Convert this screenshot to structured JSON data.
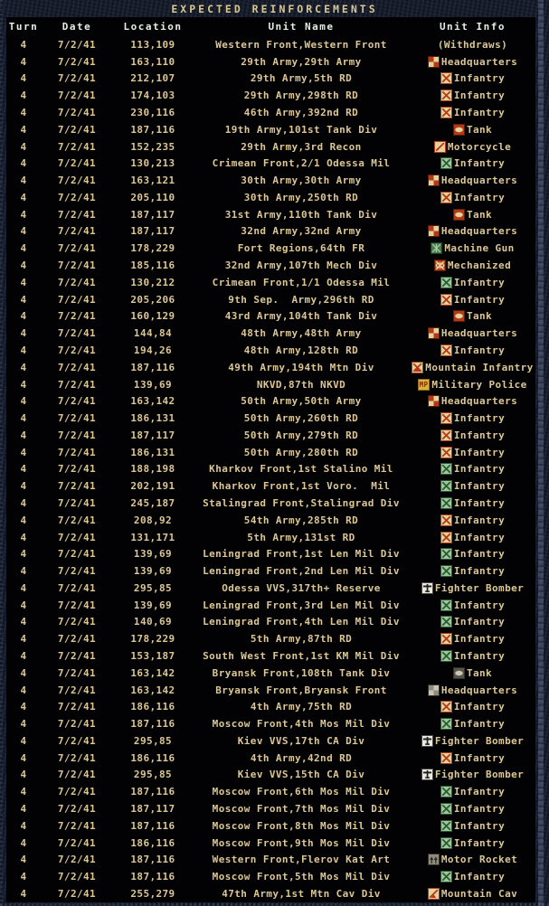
{
  "title": "EXPECTED REINFORCEMENTS",
  "colors": {
    "frame_bg": "#151b29",
    "panel_bg": "#020204",
    "title_text": "#d9c792",
    "header_text": "#e4efe4",
    "body_text": "#dcc794",
    "icon_red": "#b23a17",
    "icon_tan": "#e3d19e",
    "icon_green": "#2c5a30",
    "icon_gold": "#d8b23a",
    "icon_gray": "#8f8b7d"
  },
  "table": {
    "headers": [
      "Turn",
      "Date",
      "Location",
      "Unit Name",
      "Unit Info"
    ],
    "rows": [
      {
        "turn": "4",
        "date": "7/2/41",
        "loc": "113,109",
        "name": "Western Front,Western Front",
        "info": "(Withdraws)",
        "icon": "none"
      },
      {
        "turn": "4",
        "date": "7/2/41",
        "loc": "163,110",
        "name": "29th Army,29th Army",
        "info": "Headquarters",
        "icon": "headquarters-red"
      },
      {
        "turn": "4",
        "date": "7/2/41",
        "loc": "212,107",
        "name": "29th Army,5th RD",
        "info": "Infantry",
        "icon": "infantry-red"
      },
      {
        "turn": "4",
        "date": "7/2/41",
        "loc": "174,103",
        "name": "29th Army,298th RD",
        "info": "Infantry",
        "icon": "infantry-red"
      },
      {
        "turn": "4",
        "date": "7/2/41",
        "loc": "230,116",
        "name": "46th Army,392nd RD",
        "info": "Infantry",
        "icon": "infantry-red"
      },
      {
        "turn": "4",
        "date": "7/2/41",
        "loc": "187,116",
        "name": "19th Army,101st Tank Div",
        "info": "Tank",
        "icon": "tank-orange"
      },
      {
        "turn": "4",
        "date": "7/2/41",
        "loc": "152,235",
        "name": "29th Army,3rd Recon",
        "info": "Motorcycle",
        "icon": "motorcycle-red"
      },
      {
        "turn": "4",
        "date": "7/2/41",
        "loc": "130,213",
        "name": "Crimean Front,2/1 Odessa Mil",
        "info": "Infantry",
        "icon": "infantry-green"
      },
      {
        "turn": "4",
        "date": "7/2/41",
        "loc": "163,121",
        "name": "30th Army,30th Army",
        "info": "Headquarters",
        "icon": "headquarters-red"
      },
      {
        "turn": "4",
        "date": "7/2/41",
        "loc": "205,110",
        "name": "30th Army,250th RD",
        "info": "Infantry",
        "icon": "infantry-red"
      },
      {
        "turn": "4",
        "date": "7/2/41",
        "loc": "187,117",
        "name": "31st Army,110th Tank Div",
        "info": "Tank",
        "icon": "tank-orange"
      },
      {
        "turn": "4",
        "date": "7/2/41",
        "loc": "187,117",
        "name": "32nd Army,32nd Army",
        "info": "Headquarters",
        "icon": "headquarters-red"
      },
      {
        "turn": "4",
        "date": "7/2/41",
        "loc": "178,229",
        "name": "Fort Regions,64th FR",
        "info": "Machine Gun",
        "icon": "machine-gun-green"
      },
      {
        "turn": "4",
        "date": "7/2/41",
        "loc": "185,116",
        "name": "32nd Army,107th Mech Div",
        "info": "Mechanized",
        "icon": "mechanized-red"
      },
      {
        "turn": "4",
        "date": "7/2/41",
        "loc": "130,212",
        "name": "Crimean Front,1/1 Odessa Mil",
        "info": "Infantry",
        "icon": "infantry-green"
      },
      {
        "turn": "4",
        "date": "7/2/41",
        "loc": "205,206",
        "name": "9th Sep.  Army,296th RD",
        "info": "Infantry",
        "icon": "infantry-red"
      },
      {
        "turn": "4",
        "date": "7/2/41",
        "loc": "160,129",
        "name": "43rd Army,104th Tank Div",
        "info": "Tank",
        "icon": "tank-orange"
      },
      {
        "turn": "4",
        "date": "7/2/41",
        "loc": "144,84",
        "name": "48th Army,48th Army",
        "info": "Headquarters",
        "icon": "headquarters-red"
      },
      {
        "turn": "4",
        "date": "7/2/41",
        "loc": "194,26",
        "name": "48th Army,128th RD",
        "info": "Infantry",
        "icon": "infantry-red"
      },
      {
        "turn": "4",
        "date": "7/2/41",
        "loc": "187,116",
        "name": "49th Army,194th Mtn Div",
        "info": "Mountain Infantry",
        "icon": "mountain-infantry-red"
      },
      {
        "turn": "4",
        "date": "7/2/41",
        "loc": "139,69",
        "name": "NKVD,87th NKVD",
        "info": "Military Police",
        "icon": "military-police-gold"
      },
      {
        "turn": "4",
        "date": "7/2/41",
        "loc": "163,142",
        "name": "50th Army,50th Army",
        "info": "Headquarters",
        "icon": "headquarters-red"
      },
      {
        "turn": "4",
        "date": "7/2/41",
        "loc": "186,131",
        "name": "50th Army,260th RD",
        "info": "Infantry",
        "icon": "infantry-red"
      },
      {
        "turn": "4",
        "date": "7/2/41",
        "loc": "187,117",
        "name": "50th Army,279th RD",
        "info": "Infantry",
        "icon": "infantry-red"
      },
      {
        "turn": "4",
        "date": "7/2/41",
        "loc": "186,131",
        "name": "50th Army,280th RD",
        "info": "Infantry",
        "icon": "infantry-red"
      },
      {
        "turn": "4",
        "date": "7/2/41",
        "loc": "188,198",
        "name": "Kharkov Front,1st Stalino Mil",
        "info": "Infantry",
        "icon": "infantry-green"
      },
      {
        "turn": "4",
        "date": "7/2/41",
        "loc": "202,191",
        "name": "Kharkov Front,1st Voro.  Mil",
        "info": "Infantry",
        "icon": "infantry-green"
      },
      {
        "turn": "4",
        "date": "7/2/41",
        "loc": "245,187",
        "name": "Stalingrad Front,Stalingrad Div",
        "info": "Infantry",
        "icon": "infantry-green"
      },
      {
        "turn": "4",
        "date": "7/2/41",
        "loc": "208,92",
        "name": "54th Army,285th RD",
        "info": "Infantry",
        "icon": "infantry-red"
      },
      {
        "turn": "4",
        "date": "7/2/41",
        "loc": "131,171",
        "name": "5th Army,131st RD",
        "info": "Infantry",
        "icon": "infantry-red"
      },
      {
        "turn": "4",
        "date": "7/2/41",
        "loc": "139,69",
        "name": "Leningrad Front,1st Len Mil Div",
        "info": "Infantry",
        "icon": "infantry-green"
      },
      {
        "turn": "4",
        "date": "7/2/41",
        "loc": "139,69",
        "name": "Leningrad Front,2nd Len Mil Div",
        "info": "Infantry",
        "icon": "infantry-green"
      },
      {
        "turn": "4",
        "date": "7/2/41",
        "loc": "295,85",
        "name": "Odessa VVS,317th+ Reserve",
        "info": "Fighter Bomber",
        "icon": "fighter-bomber"
      },
      {
        "turn": "4",
        "date": "7/2/41",
        "loc": "139,69",
        "name": "Leningrad Front,3rd Len Mil Div",
        "info": "Infantry",
        "icon": "infantry-green"
      },
      {
        "turn": "4",
        "date": "7/2/41",
        "loc": "140,69",
        "name": "Leningrad Front,4th Len Mil Div",
        "info": "Infantry",
        "icon": "infantry-green"
      },
      {
        "turn": "4",
        "date": "7/2/41",
        "loc": "178,229",
        "name": "5th Army,87th RD",
        "info": "Infantry",
        "icon": "infantry-red"
      },
      {
        "turn": "4",
        "date": "7/2/41",
        "loc": "153,187",
        "name": "South West Front,1st KM Mil Div",
        "info": "Infantry",
        "icon": "infantry-green"
      },
      {
        "turn": "4",
        "date": "7/2/41",
        "loc": "163,142",
        "name": "Bryansk Front,108th Tank Div",
        "info": "Tank",
        "icon": "tank-gray"
      },
      {
        "turn": "4",
        "date": "7/2/41",
        "loc": "163,142",
        "name": "Bryansk Front,Bryansk Front",
        "info": "Headquarters",
        "icon": "headquarters-gray"
      },
      {
        "turn": "4",
        "date": "7/2/41",
        "loc": "186,116",
        "name": "4th Army,75th RD",
        "info": "Infantry",
        "icon": "infantry-red"
      },
      {
        "turn": "4",
        "date": "7/2/41",
        "loc": "187,116",
        "name": "Moscow Front,4th Mos Mil Div",
        "info": "Infantry",
        "icon": "infantry-green"
      },
      {
        "turn": "4",
        "date": "7/2/41",
        "loc": "295,85",
        "name": "Kiev VVS,17th CA Div",
        "info": "Fighter Bomber",
        "icon": "fighter-bomber"
      },
      {
        "turn": "4",
        "date": "7/2/41",
        "loc": "186,116",
        "name": "4th Army,42nd RD",
        "info": "Infantry",
        "icon": "infantry-red"
      },
      {
        "turn": "4",
        "date": "7/2/41",
        "loc": "295,85",
        "name": "Kiev VVS,15th CA Div",
        "info": "Fighter Bomber",
        "icon": "fighter-bomber"
      },
      {
        "turn": "4",
        "date": "7/2/41",
        "loc": "187,116",
        "name": "Moscow Front,6th Mos Mil Div",
        "info": "Infantry",
        "icon": "infantry-green"
      },
      {
        "turn": "4",
        "date": "7/2/41",
        "loc": "187,117",
        "name": "Moscow Front,7th Mos Mil Div",
        "info": "Infantry",
        "icon": "infantry-green"
      },
      {
        "turn": "4",
        "date": "7/2/41",
        "loc": "187,116",
        "name": "Moscow Front,8th Mos Mil Div",
        "info": "Infantry",
        "icon": "infantry-green"
      },
      {
        "turn": "4",
        "date": "7/2/41",
        "loc": "186,116",
        "name": "Moscow Front,9th Mos Mil Div",
        "info": "Infantry",
        "icon": "infantry-green"
      },
      {
        "turn": "4",
        "date": "7/2/41",
        "loc": "187,116",
        "name": "Western Front,Flerov Kat Art",
        "info": "Motor Rocket",
        "icon": "motor-rocket-gray"
      },
      {
        "turn": "4",
        "date": "7/2/41",
        "loc": "187,116",
        "name": "Moscow Front,5th Mos Mil Div",
        "info": "Infantry",
        "icon": "infantry-green"
      },
      {
        "turn": "4",
        "date": "7/2/41",
        "loc": "255,279",
        "name": "47th Army,1st Mtn Cav Div",
        "info": "Mountain Cav",
        "icon": "mountain-cav-orange"
      }
    ]
  }
}
